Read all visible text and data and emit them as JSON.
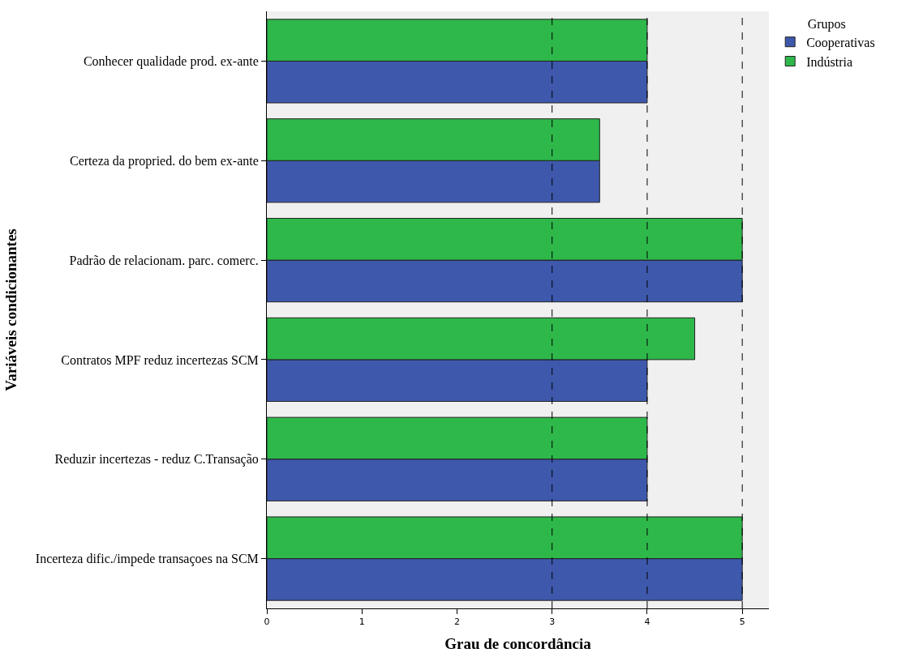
{
  "chart_data": {
    "type": "bar",
    "orientation": "horizontal",
    "xlabel": "Grau de concordância",
    "ylabel": "Variáveis condicionantes",
    "legend_title": "Grupos",
    "legend": "top right",
    "categories": [
      "Conhecer qualidade prod. ex-ante",
      "Certeza da propried. do bem ex-ante",
      "Padrão de relacionam. parc. comerc.",
      "Contratos MPF reduz incertezas SCM",
      "Reduzir incertezas - reduz C.Transação",
      "Incerteza dific./impede transaçoes na SCM"
    ],
    "series": [
      {
        "name": "Cooperativas",
        "color": "#3e58ac",
        "values": [
          4,
          3.5,
          5,
          4,
          4,
          5
        ]
      },
      {
        "name": "Indústria",
        "color": "#2eb84a",
        "values": [
          4,
          3.5,
          5,
          4.5,
          4,
          5
        ]
      }
    ],
    "xlim": [
      0,
      5.28
    ],
    "xticks": [
      0,
      1,
      2,
      3,
      4,
      5
    ],
    "grid": false,
    "ref_lines": [
      {
        "axis": "x",
        "value": 3,
        "line_style": "dashed",
        "color": "#000000"
      },
      {
        "axis": "x",
        "value": 4,
        "line_style": "dashed",
        "color": "#000000"
      },
      {
        "axis": "x",
        "value": 5,
        "line_style": "dashed",
        "color": "#000000"
      }
    ]
  }
}
